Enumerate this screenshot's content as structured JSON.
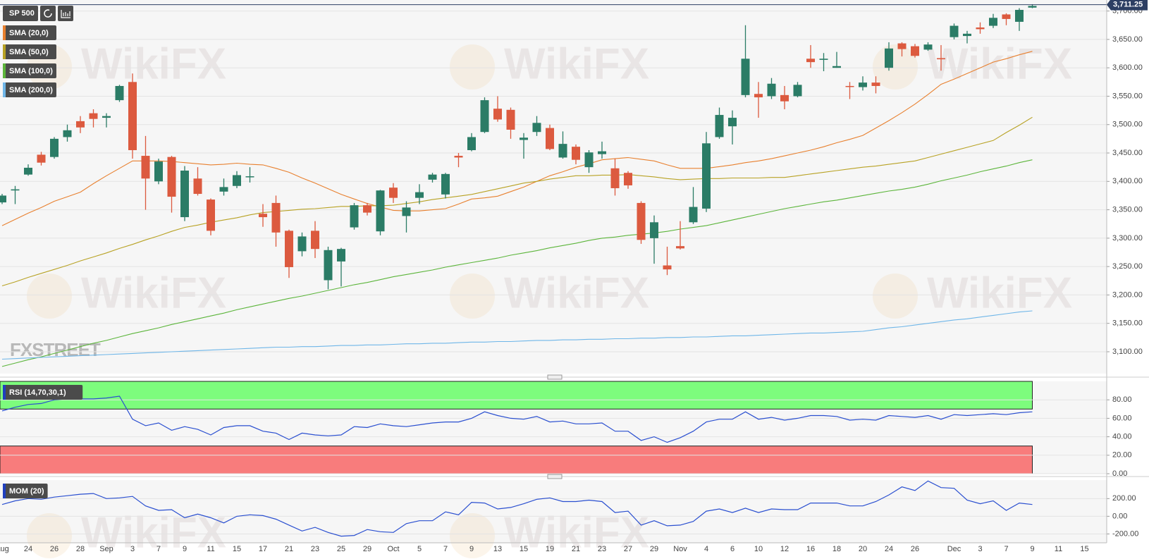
{
  "watermark": "WikiFX",
  "logo": "FXSTREET",
  "chart_data": [
    {
      "type": "candlestick",
      "title": "SP 500",
      "categories": [
        "Aug",
        null,
        "24",
        null,
        "26",
        null,
        "28",
        null,
        "Sep",
        null,
        "3",
        null,
        "7",
        null,
        "9",
        null,
        "11",
        null,
        "15",
        null,
        "17",
        null,
        "21",
        null,
        "23",
        null,
        "25",
        null,
        "29",
        null,
        "Oct",
        null,
        "5",
        null,
        "7",
        null,
        "9",
        null,
        "13",
        null,
        "15",
        null,
        "19",
        null,
        "21",
        null,
        "23",
        null,
        "27",
        null,
        "29",
        null,
        "Nov",
        null,
        "4",
        null,
        "6",
        null,
        "10",
        null,
        "12",
        null,
        "16",
        null,
        "18",
        null,
        "20",
        null,
        "24",
        null,
        "26",
        null,
        null,
        "Dec",
        null,
        "3",
        null,
        "7",
        null,
        "9",
        null,
        "11",
        null,
        "15",
        null
      ],
      "open": [
        3363,
        3384,
        3412,
        3447,
        3443,
        3478,
        3506,
        3520,
        3512,
        3543,
        3575,
        3445,
        3400,
        3443,
        3337,
        3405,
        3368,
        3382,
        3392,
        3408,
        3343,
        3362,
        3313,
        3277,
        3313,
        3226,
        3259,
        3319,
        3358,
        3312,
        3389,
        3339,
        3371,
        3403,
        3377,
        3445,
        3455,
        3487,
        3528,
        3526,
        3473,
        3487,
        3494,
        3442,
        3461,
        3425,
        3448,
        3423,
        3415,
        3362,
        3300,
        3252,
        3286,
        3328,
        3352,
        3478,
        3497,
        3552,
        3554,
        3550,
        3552,
        3550,
        3616,
        3614,
        3600,
        3568,
        3566,
        3574,
        3600,
        3643,
        3638,
        3632,
        3617,
        3654,
        3656,
        3671,
        3674,
        3694,
        3681,
        3706,
        null,
        null,
        null,
        null,
        null
      ],
      "high": [
        3378,
        3392,
        3430,
        3452,
        3478,
        3500,
        3515,
        3527,
        3520,
        3570,
        3590,
        3480,
        3440,
        3445,
        3427,
        3425,
        3370,
        3405,
        3418,
        3425,
        3360,
        3375,
        3315,
        3310,
        3330,
        3285,
        3283,
        3362,
        3362,
        3385,
        3397,
        3365,
        3395,
        3415,
        3415,
        3450,
        3485,
        3548,
        3550,
        3530,
        3485,
        3515,
        3500,
        3488,
        3465,
        3455,
        3470,
        3440,
        3418,
        3365,
        3340,
        3285,
        3330,
        3390,
        3487,
        3530,
        3525,
        3675,
        3575,
        3582,
        3568,
        3575,
        3640,
        3626,
        3628,
        3575,
        3585,
        3585,
        3645,
        3645,
        3642,
        3645,
        3640,
        3678,
        3665,
        3680,
        3695,
        3696,
        3705,
        3712,
        null,
        null,
        null,
        null,
        null
      ],
      "low": [
        3360,
        3360,
        3410,
        3428,
        3440,
        3470,
        3485,
        3495,
        3495,
        3540,
        3440,
        3350,
        3395,
        3345,
        3330,
        3375,
        3305,
        3375,
        3388,
        3398,
        3320,
        3285,
        3230,
        3268,
        3265,
        3210,
        3215,
        3315,
        3340,
        3305,
        3362,
        3310,
        3360,
        3398,
        3370,
        3425,
        3453,
        3485,
        3505,
        3475,
        3440,
        3480,
        3455,
        3440,
        3430,
        3415,
        3440,
        3375,
        3387,
        3290,
        3255,
        3235,
        3280,
        3325,
        3346,
        3475,
        3465,
        3548,
        3512,
        3545,
        3527,
        3548,
        3600,
        3594,
        3600,
        3545,
        3560,
        3555,
        3595,
        3620,
        3618,
        3630,
        3595,
        3650,
        3643,
        3660,
        3670,
        3675,
        3665,
        3705,
        null,
        null,
        null,
        null,
        null
      ],
      "close": [
        3375,
        3386,
        3424,
        3433,
        3475,
        3490,
        3495,
        3510,
        3515,
        3568,
        3455,
        3405,
        3435,
        3373,
        3419,
        3378,
        3313,
        3390,
        3411,
        3409,
        3337,
        3310,
        3249,
        3303,
        3281,
        3279,
        3281,
        3358,
        3345,
        3384,
        3371,
        3354,
        3381,
        3412,
        3413,
        3442,
        3478,
        3543,
        3509,
        3491,
        3477,
        3503,
        3457,
        3466,
        3438,
        3451,
        3453,
        3388,
        3393,
        3297,
        3328,
        3245,
        3282,
        3355,
        3467,
        3517,
        3512,
        3616,
        3548,
        3572,
        3541,
        3570,
        3610,
        3616,
        3603,
        3567,
        3574,
        3568,
        3634,
        3633,
        3621,
        3641,
        3615,
        3674,
        3660,
        3668,
        3688,
        3686,
        3702,
        3709,
        null,
        null,
        null,
        null,
        null
      ],
      "up_color": "#2b7c66",
      "down_color": "#dc5a3f",
      "series": [
        {
          "name": "SMA (20,0)",
          "color": "#e8802f",
          "values": [
            3322,
            3333,
            3344,
            3354,
            3365,
            3373,
            3381,
            3396,
            3410,
            3423,
            3436,
            3436,
            3436,
            3435,
            3433,
            3431,
            3429,
            3430,
            3432,
            3430,
            3429,
            3423,
            3416,
            3406,
            3397,
            3387,
            3377,
            3369,
            3361,
            3355,
            3349,
            3348,
            3348,
            3350,
            3352,
            3360,
            3369,
            3371,
            3374,
            3382,
            3390,
            3400,
            3410,
            3417,
            3425,
            3431,
            3438,
            3440,
            3442,
            3439,
            3436,
            3429,
            3423,
            3423,
            3423,
            3426,
            3429,
            3433,
            3436,
            3440,
            3445,
            3450,
            3455,
            3461,
            3468,
            3474,
            3481,
            3494,
            3507,
            3521,
            3536,
            3553,
            3571,
            3580,
            3590,
            3600,
            3610,
            3616,
            3623,
            3629,
            null,
            null,
            null,
            null,
            null
          ]
        },
        {
          "name": "SMA (50,0)",
          "color": "#b8a224",
          "values": [
            3216,
            3223,
            3231,
            3238,
            3245,
            3252,
            3260,
            3267,
            3274,
            3282,
            3289,
            3297,
            3304,
            3312,
            3319,
            3323,
            3328,
            3332,
            3336,
            3341,
            3345,
            3347,
            3349,
            3351,
            3352,
            3354,
            3356,
            3356,
            3357,
            3357,
            3358,
            3361,
            3364,
            3368,
            3371,
            3374,
            3377,
            3382,
            3387,
            3392,
            3397,
            3400,
            3404,
            3407,
            3410,
            3410,
            3411,
            3411,
            3412,
            3410,
            3408,
            3405,
            3403,
            3404,
            3405,
            3405,
            3406,
            3406,
            3406,
            3407,
            3407,
            3410,
            3413,
            3416,
            3419,
            3422,
            3425,
            3427,
            3430,
            3433,
            3436,
            3442,
            3448,
            3454,
            3460,
            3466,
            3472,
            3486,
            3499,
            3513,
            null,
            null,
            null,
            null,
            null
          ]
        },
        {
          "name": "SMA (100,0)",
          "color": "#5cb53b",
          "values": [
            3074,
            3080,
            3086,
            3091,
            3097,
            3103,
            3109,
            3115,
            3120,
            3126,
            3132,
            3137,
            3142,
            3148,
            3153,
            3158,
            3163,
            3168,
            3174,
            3179,
            3184,
            3189,
            3194,
            3198,
            3203,
            3208,
            3213,
            3218,
            3222,
            3227,
            3232,
            3236,
            3240,
            3244,
            3249,
            3253,
            3257,
            3261,
            3265,
            3270,
            3274,
            3278,
            3283,
            3287,
            3291,
            3296,
            3300,
            3302,
            3305,
            3307,
            3309,
            3312,
            3316,
            3319,
            3322,
            3327,
            3332,
            3337,
            3342,
            3347,
            3352,
            3356,
            3360,
            3364,
            3367,
            3371,
            3375,
            3379,
            3383,
            3386,
            3390,
            3395,
            3401,
            3406,
            3411,
            3417,
            3422,
            3427,
            3433,
            3438,
            null,
            null,
            null,
            null,
            null
          ]
        },
        {
          "name": "SMA (200,0)",
          "color": "#6fb6e8",
          "values": [
            3087,
            3088,
            3089,
            3090,
            3091,
            3092,
            3093,
            3094,
            3095,
            3096,
            3097,
            3098,
            3099,
            3100,
            3101,
            3102,
            3103,
            3104,
            3105,
            3106,
            3107,
            3108,
            3108,
            3109,
            3109,
            3110,
            3111,
            3111,
            3112,
            3112,
            3113,
            3114,
            3114,
            3115,
            3115,
            3116,
            3117,
            3117,
            3118,
            3118,
            3119,
            3120,
            3120,
            3121,
            3121,
            3122,
            3122,
            3123,
            3123,
            3124,
            3124,
            3125,
            3125,
            3126,
            3126,
            3127,
            3128,
            3128,
            3129,
            3130,
            3131,
            3132,
            3133,
            3133,
            3134,
            3135,
            3136,
            3139,
            3142,
            3144,
            3147,
            3150,
            3153,
            3156,
            3158,
            3161,
            3164,
            3167,
            3170,
            3172,
            null,
            null,
            null,
            null,
            null
          ]
        }
      ],
      "ylim": [
        3061.5,
        3719.4
      ],
      "yticks": [
        {
          "value": 3100,
          "label": "3,100.00"
        },
        {
          "value": 3150,
          "label": "3,150.00"
        },
        {
          "value": 3200,
          "label": "3,200.00"
        },
        {
          "value": 3250,
          "label": "3,250.00"
        },
        {
          "value": 3300,
          "label": "3,300.00"
        },
        {
          "value": 3350,
          "label": "3,350.00"
        },
        {
          "value": 3400,
          "label": "3,400.00"
        },
        {
          "value": 3450,
          "label": "3,450.00"
        },
        {
          "value": 3500,
          "label": "3,500.00"
        },
        {
          "value": 3550,
          "label": "3,550.00"
        },
        {
          "value": 3600,
          "label": "3,600.00"
        },
        {
          "value": 3650,
          "label": "3,650.00"
        },
        {
          "value": 3700,
          "label": "3,700.00"
        }
      ],
      "grid": true,
      "last_price": {
        "value": 3711.25,
        "label": "3,711.25"
      }
    },
    {
      "type": "line",
      "title": "RSI (14,70,30,1)",
      "color": "#2a4fd0",
      "values": [
        68,
        72,
        75,
        76,
        80,
        81,
        81,
        81,
        82,
        84,
        59,
        52,
        55,
        47,
        51,
        48,
        42,
        50,
        52,
        52,
        46,
        44,
        37,
        44,
        42,
        41,
        42,
        51,
        50,
        54,
        52,
        51,
        53,
        55,
        56,
        56,
        60,
        67,
        63,
        60,
        59,
        62,
        56,
        57,
        54,
        54,
        55,
        46,
        46,
        36,
        40,
        34,
        39,
        46,
        56,
        59,
        59,
        67,
        59,
        61,
        58,
        60,
        63,
        63,
        62,
        58,
        59,
        58,
        63,
        62,
        61,
        63,
        59,
        64,
        63,
        64,
        65,
        64,
        66,
        67,
        null,
        null,
        null,
        null,
        null
      ],
      "overbought": 70,
      "oversold": 30,
      "overbought_color": "#7dfc7d",
      "oversold_color": "#f87c7c",
      "ylim": [
        0,
        100
      ],
      "yticks": [
        {
          "value": 0,
          "label": "0.00"
        },
        {
          "value": 20,
          "label": "20.00"
        },
        {
          "value": 40,
          "label": "40.00"
        },
        {
          "value": 60,
          "label": "60.00"
        },
        {
          "value": 80,
          "label": "80.00"
        }
      ],
      "grid": true
    },
    {
      "type": "line",
      "title": "MOM (20)",
      "color": "#2a4fd0",
      "values": [
        133,
        175,
        200,
        192,
        217,
        233,
        250,
        258,
        200,
        208,
        225,
        117,
        67,
        75,
        -17,
        25,
        -17,
        -75,
        0,
        17,
        8,
        -33,
        -100,
        -167,
        -125,
        -183,
        -225,
        -217,
        -150,
        -175,
        -183,
        -83,
        -50,
        -50,
        50,
        17,
        158,
        150,
        83,
        100,
        142,
        192,
        208,
        167,
        167,
        183,
        167,
        42,
        58,
        -100,
        -50,
        -108,
        -100,
        -58,
        58,
        83,
        42,
        92,
        42,
        83,
        75,
        75,
        150,
        150,
        150,
        117,
        117,
        167,
        242,
        333,
        292,
        400,
        325,
        317,
        183,
        142,
        175,
        67,
        150,
        133,
        null,
        null,
        null,
        null,
        null
      ],
      "ylim": [
        -300,
        410
      ],
      "yticks": [
        {
          "value": -200,
          "label": "-200.00"
        },
        {
          "value": 0,
          "label": "0.00"
        },
        {
          "value": 200,
          "label": "200.00"
        }
      ],
      "grid": true
    }
  ]
}
